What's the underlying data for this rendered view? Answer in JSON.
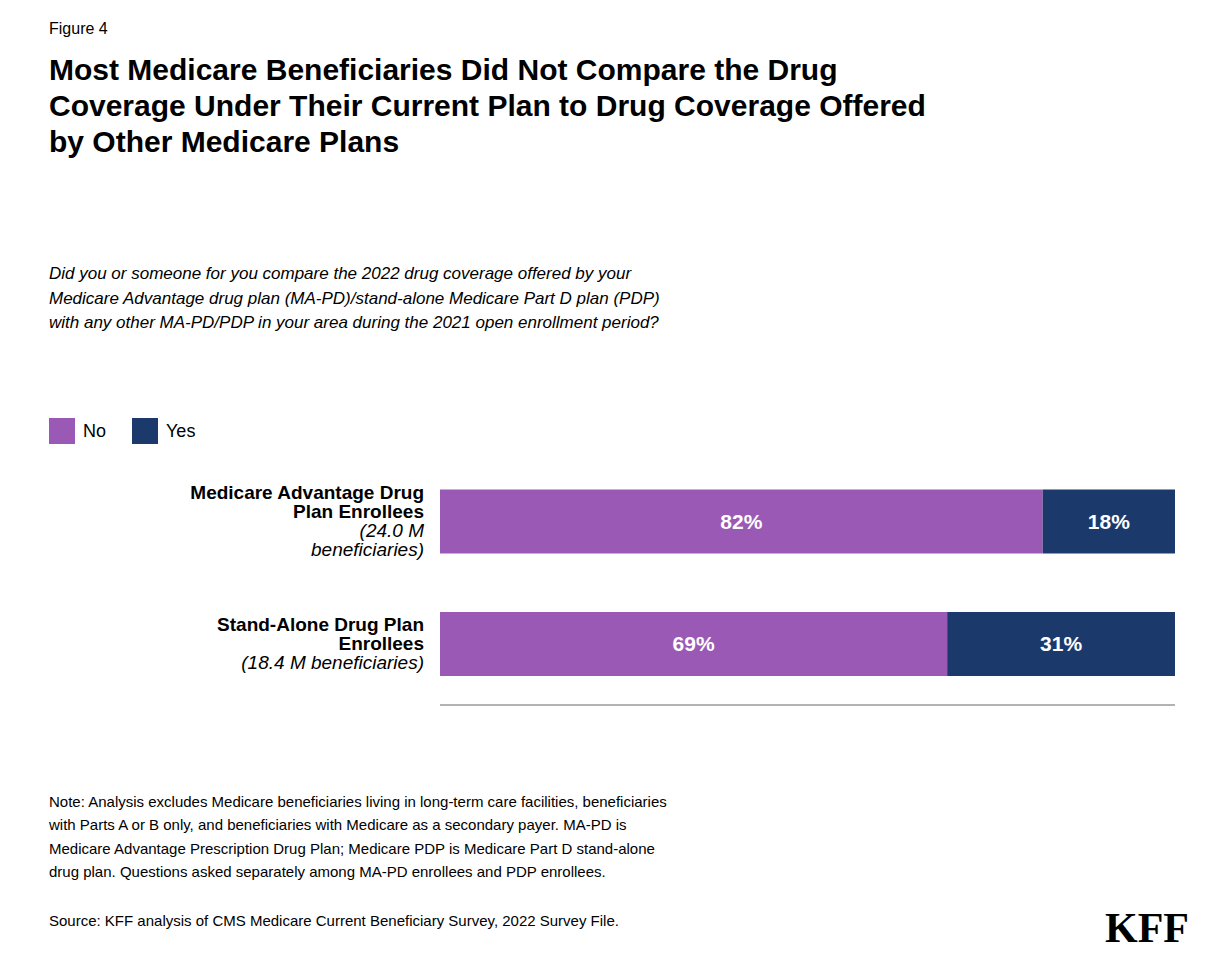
{
  "chart_data": {
    "type": "bar",
    "orientation": "horizontal",
    "stacked": true,
    "data_labels": true,
    "tick_labels": false,
    "grid": false,
    "legend": "top",
    "title": "Most Medicare Beneficiaries Did Not Compare the Drug\nCoverage Under Their Current Plan to Drug Coverage Offered\nby Other Medicare Plans",
    "subtitle": "Did you or someone for you compare the 2022 drug coverage offered by your\nMedicare Advantage drug plan (MA-PD)/stand-alone Medicare Part D plan (PDP)\nwith any other MA-PD/PDP in your area during the 2021 open enrollment period?",
    "annotations": [
      "Figure 4",
      "Note: Analysis excludes Medicare beneficiaries living in long-term care facilities, beneficiaries\nwith Parts A or B only, and beneficiaries with Medicare as a secondary payer. MA-PD is\nMedicare Advantage Prescription Drug Plan; Medicare PDP is Medicare Part D stand-alone\ndrug plan. Questions asked separately among MA-PD enrollees and PDP enrollees.",
      "Source: KFF analysis of CMS Medicare Current Beneficiary Survey, 2022 Survey File.",
      "KFF"
    ],
    "categories": [
      "Medicare Advantage Drug\nPlan Enrollees\n(24.0 M\nbeneficiaries)",
      "Stand-Alone Drug Plan\nEnrollees\n(18.4 M beneficiaries)"
    ],
    "xlim": [
      0,
      100
    ],
    "series": [
      {
        "name": "No",
        "color": "#9B59B6",
        "values": [
          82,
          69
        ],
        "value_labels": [
          "82%",
          "69%"
        ]
      },
      {
        "name": "Yes",
        "color": "#1B3A6B",
        "values": [
          18,
          31
        ],
        "value_labels": [
          "18%",
          "31%"
        ]
      }
    ]
  }
}
